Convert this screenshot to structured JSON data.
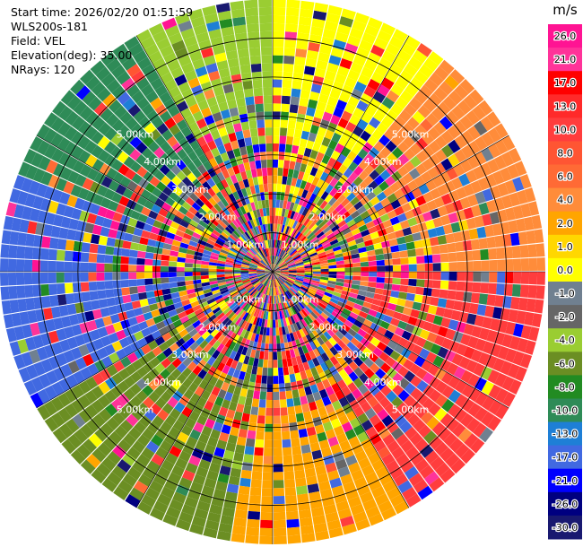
{
  "header": {
    "start_time": "Start time: 2026/02/20 01:51:59",
    "instrument": "WLS200s-181",
    "field": "Field: VEL",
    "elevation": "Elevation(deg): 35.00",
    "nrays": "NRays: 120"
  },
  "chart_data": {
    "type": "heatmap",
    "projection": "polar",
    "field": "VEL",
    "units": "m/s",
    "rays": 120,
    "ring_labels": [
      "1.00km",
      "2.00km",
      "3.00km",
      "4.00km",
      "5.00km"
    ],
    "rings_km": [
      1,
      2,
      3,
      4,
      5,
      6
    ],
    "max_range_km": 7,
    "colorbar": {
      "title": "m/s",
      "ticks": [
        "26.0",
        "21.0",
        "17.0",
        "13.0",
        "10.0",
        "8.0",
        "6.0",
        "4.0",
        "2.0",
        "1.0",
        "0.0",
        "-1.0",
        "-2.0",
        "-4.0",
        "-6.0",
        "-8.0",
        "-10.0",
        "-13.0",
        "-17.0",
        "-21.0",
        "-26.0",
        "-30.0"
      ],
      "colors": [
        "#ff1493",
        "#ff3399",
        "#ff0000",
        "#ff2a2a",
        "#ff3d3d",
        "#ff5533",
        "#ff6a35",
        "#ff8c3a",
        "#ffa500",
        "#ffd700",
        "#ffff00",
        "#708090",
        "#666666",
        "#9acd32",
        "#6b8e23",
        "#228b22",
        "#2e8b57",
        "#1e7fd6",
        "#4169e1",
        "#0000ff",
        "#000080",
        "#191970"
      ]
    },
    "sectors": [
      {
        "from_deg": 0,
        "to_deg": 40,
        "dominant": "#ffff00"
      },
      {
        "from_deg": 40,
        "to_deg": 90,
        "dominant": "#ff8c3a"
      },
      {
        "from_deg": 90,
        "to_deg": 150,
        "dominant": "#ff3d3d"
      },
      {
        "from_deg": 150,
        "to_deg": 190,
        "dominant": "#ffa500"
      },
      {
        "from_deg": 190,
        "to_deg": 240,
        "dominant": "#6b8e23"
      },
      {
        "from_deg": 240,
        "to_deg": 290,
        "dominant": "#4169e1"
      },
      {
        "from_deg": 290,
        "to_deg": 330,
        "dominant": "#2e8b57"
      },
      {
        "from_deg": 330,
        "to_deg": 360,
        "dominant": "#9acd32"
      }
    ]
  }
}
